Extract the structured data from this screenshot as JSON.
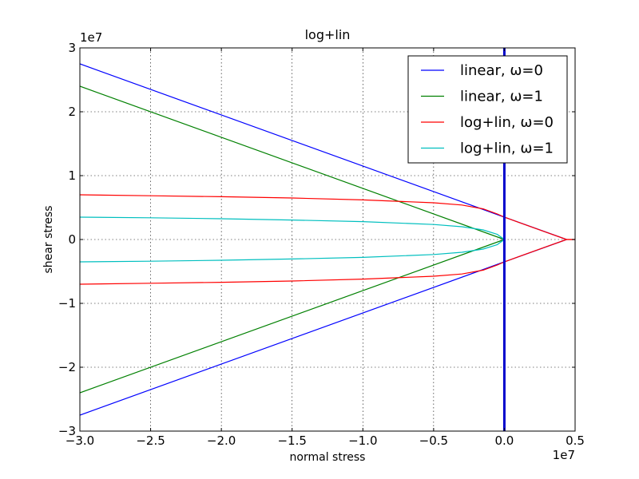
{
  "chart_data": {
    "type": "line",
    "title": "log+lin",
    "xlabel": "normal stress",
    "ylabel": "shear stress",
    "x_offset_text": "1e7",
    "y_offset_text": "1e7",
    "xlim": [
      -3.0,
      0.5
    ],
    "ylim": [
      -3.0,
      3.0
    ],
    "xticks": [
      -3.0,
      -2.5,
      -2.0,
      -1.5,
      -1.0,
      -0.5,
      0.0,
      0.5
    ],
    "xtick_labels": [
      "−3.0",
      "−2.5",
      "−2.0",
      "−1.5",
      "−1.0",
      "−0.5",
      "0.0",
      "0.5"
    ],
    "yticks": [
      3,
      2,
      1,
      0,
      -1,
      -2,
      -3
    ],
    "ytick_labels": [
      "3",
      "2",
      "1",
      "0",
      "−1",
      "−2",
      "−3"
    ],
    "grid": true,
    "legend_position": "top-right",
    "vertical_line": {
      "x": 0.0,
      "color": "#0000cc"
    },
    "series": [
      {
        "name": "linear, ω=0",
        "color": "#0000ff",
        "branches": [
          {
            "x": [
              -3.0,
              0.0,
              0.44
            ],
            "y": [
              2.75,
              0.35,
              0.0
            ]
          },
          {
            "x": [
              -3.0,
              0.0,
              0.44
            ],
            "y": [
              -2.75,
              -0.35,
              0.0
            ]
          }
        ]
      },
      {
        "name": "linear, ω=1",
        "color": "#008000",
        "branches": [
          {
            "x": [
              -3.0,
              0.0
            ],
            "y": [
              2.4,
              0.0
            ]
          },
          {
            "x": [
              -3.0,
              0.0
            ],
            "y": [
              -2.4,
              0.0
            ]
          }
        ]
      },
      {
        "name": "log+lin, ω=0",
        "color": "#ff0000",
        "branches": [
          {
            "x": [
              -3.0,
              -2.5,
              -2.0,
              -1.5,
              -1.0,
              -0.5,
              -0.3,
              -0.15,
              -0.05,
              0.0,
              0.1,
              0.2,
              0.3,
              0.44,
              0.5
            ],
            "y": [
              0.7,
              0.685,
              0.67,
              0.65,
              0.62,
              0.575,
              0.54,
              0.48,
              0.4,
              0.35,
              0.27,
              0.19,
              0.11,
              0.0,
              0.0
            ]
          },
          {
            "x": [
              -3.0,
              -2.5,
              -2.0,
              -1.5,
              -1.0,
              -0.5,
              -0.3,
              -0.15,
              -0.05,
              0.0,
              0.1,
              0.2,
              0.3,
              0.44,
              0.5
            ],
            "y": [
              -0.7,
              -0.685,
              -0.67,
              -0.65,
              -0.62,
              -0.575,
              -0.54,
              -0.48,
              -0.4,
              -0.35,
              -0.27,
              -0.19,
              -0.11,
              0.0,
              0.0
            ]
          }
        ]
      },
      {
        "name": "log+lin, ω=1",
        "color": "#00bfbf",
        "branches": [
          {
            "x": [
              -3.0,
              -2.5,
              -2.0,
              -1.5,
              -1.0,
              -0.5,
              -0.3,
              -0.15,
              -0.05,
              0.0
            ],
            "y": [
              0.35,
              0.34,
              0.325,
              0.305,
              0.28,
              0.235,
              0.2,
              0.15,
              0.08,
              0.0
            ]
          },
          {
            "x": [
              -3.0,
              -2.5,
              -2.0,
              -1.5,
              -1.0,
              -0.5,
              -0.3,
              -0.15,
              -0.05,
              0.0
            ],
            "y": [
              -0.35,
              -0.34,
              -0.325,
              -0.305,
              -0.28,
              -0.235,
              -0.2,
              -0.15,
              -0.08,
              0.0
            ]
          }
        ]
      }
    ]
  }
}
